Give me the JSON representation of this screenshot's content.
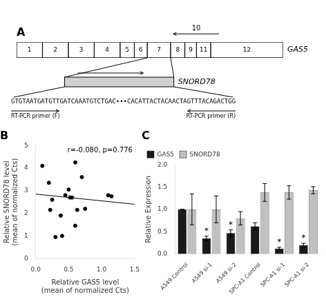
{
  "chart_data": [
    {
      "type": "diagram",
      "title": "A",
      "categories": [
        "1",
        "2",
        "3",
        "4",
        "5",
        "6",
        "7",
        "8",
        "9",
        "11",
        "12"
      ],
      "values": [
        1.0,
        1.0,
        1.0,
        1.0,
        0.55,
        0.5,
        0.9,
        0.55,
        0.45,
        0.55,
        2.8
      ],
      "xlim": [
        0,
        10.3
      ],
      "tick_labels": false,
      "annotations": [
        "GAS5",
        "10",
        "SNORD78",
        "GTGTAATGATGTTGATCAAATGTCTGAC•••CACATTACTACAACTAGTTTACAGACTGG",
        "RT-PCR primer (F)",
        "RT-PCR primer (R)"
      ]
    },
    {
      "type": "scatter",
      "title": "B",
      "xlabel": "Relative GAS5 level\n(mean of normalized Cts)",
      "ylabel": "Relative SNORD78 level\n(mean of normalized Cts)",
      "series": [
        {
          "type": "scatter",
          "color": "#000000",
          "x": [
            0.1,
            0.2,
            0.22,
            0.25,
            0.3,
            0.38,
            0.4,
            0.45,
            0.5,
            0.52,
            0.55,
            0.6,
            0.6,
            0.63,
            0.7,
            0.75,
            1.1,
            1.15
          ],
          "values": [
            4.1,
            3.35,
            2.15,
            2.6,
            0.95,
            1.9,
            1.0,
            2.8,
            3.05,
            2.7,
            2.7,
            4.25,
            1.45,
            2.15,
            3.6,
            2.2,
            2.8,
            2.75
          ]
        },
        {
          "type": "line",
          "color": "#000000",
          "x": [
            0.0,
            1.5
          ],
          "values": [
            2.85,
            2.4
          ]
        }
      ],
      "annotations": [
        "r=-0.080, p=0.776"
      ],
      "xlim": [
        0.0,
        1.5
      ],
      "ylim": [
        0.0,
        5.0
      ],
      "xticks": [
        {
          "value": 0.0,
          "label": "0.0"
        },
        0.5,
        {
          "value": 1.0,
          "label": "1.0"
        },
        1.5
      ],
      "yticks": [
        0,
        1,
        2,
        3,
        4,
        5
      ],
      "grid": false
    },
    {
      "type": "bar",
      "title": "C",
      "categories": [
        "A549 Control",
        "A549 si-1",
        "A549 si-2",
        "SPC-A1 Control",
        "SPC-A1 si-1",
        "SPC-A1 si-2"
      ],
      "series": [
        {
          "name": "GAS5",
          "color": "#1a1a1a",
          "values": [
            1.0,
            0.35,
            0.47,
            0.62,
            0.12,
            0.2
          ],
          "errors": [
            0.0,
            0.05,
            0.07,
            0.08,
            0.03,
            0.04
          ],
          "annotations": [
            null,
            "*",
            "*",
            null,
            "*",
            "*"
          ]
        },
        {
          "name": "SNORD78",
          "color": "#c0c0c0",
          "values": [
            1.0,
            1.0,
            0.8,
            1.38,
            1.38,
            1.43
          ],
          "errors": [
            0.35,
            0.3,
            0.15,
            0.2,
            0.15,
            0.08
          ]
        }
      ],
      "ylabel": "Relative Expression",
      "ylim": [
        0.0,
        2.0
      ],
      "yticks": [
        {
          "value": 0.0,
          "label": "0.0"
        },
        0.5,
        {
          "value": 1.0,
          "label": "1.0"
        },
        1.5,
        {
          "value": 2.0,
          "label": "2.0"
        }
      ],
      "legend": "upper left",
      "grid": false
    }
  ]
}
